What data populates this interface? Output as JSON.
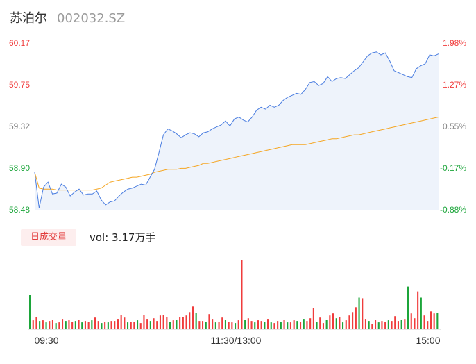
{
  "stock": {
    "name": "苏泊尔",
    "code": "002032.SZ"
  },
  "volume_panel": {
    "badge_label": "日成交量",
    "vol_text": "vol: 3.17万手"
  },
  "colors": {
    "price": "#4a7de0",
    "avg": "#f5a623",
    "up": "#f03c3c",
    "down": "#1ca53a",
    "area": "#eef3fb"
  },
  "chart_data": [
    {
      "type": "line",
      "title": "",
      "x_ticks": [
        "09:30",
        "11:30/13:00",
        "15:00"
      ],
      "y_left_ticks": [
        "60.17",
        "59.75",
        "59.32",
        "58.90",
        "58.48"
      ],
      "y_right_ticks": [
        "1.98%",
        "1.27%",
        "0.55%",
        "-0.17%",
        "-0.88%"
      ],
      "ylim": [
        58.48,
        60.17
      ],
      "prev_close": 59.0,
      "series": [
        {
          "values": [
            58.86,
            58.5,
            58.71,
            58.76,
            58.64,
            58.65,
            58.74,
            58.71,
            58.62,
            58.66,
            58.69,
            58.63,
            58.64,
            58.64,
            58.67,
            58.58,
            58.53,
            58.56,
            58.57,
            58.62,
            58.66,
            58.69,
            58.7,
            58.72,
            58.74,
            58.73,
            58.81,
            58.89,
            59.06,
            59.24,
            59.3,
            59.28,
            59.25,
            59.21,
            59.24,
            59.26,
            59.25,
            59.22,
            59.26,
            59.27,
            59.3,
            59.32,
            59.34,
            59.38,
            59.33,
            59.4,
            59.42,
            59.39,
            59.37,
            59.42,
            59.49,
            59.52,
            59.5,
            59.54,
            59.52,
            59.54,
            59.59,
            59.62,
            59.64,
            59.66,
            59.65,
            59.7,
            59.77,
            59.78,
            59.74,
            59.76,
            59.83,
            59.78,
            59.81,
            59.82,
            59.81,
            59.85,
            59.89,
            59.92,
            59.98,
            60.04,
            60.07,
            60.08,
            60.05,
            60.07,
            59.99,
            59.89,
            59.87,
            59.85,
            59.83,
            59.82,
            59.91,
            59.94,
            59.96,
            60.05,
            60.04,
            60.06
          ]
        },
        {
          "values": [
            58.86,
            58.7,
            58.69,
            58.69,
            58.69,
            58.68,
            58.68,
            58.68,
            58.68,
            58.68,
            58.68,
            58.68,
            58.68,
            58.68,
            58.69,
            58.7,
            58.73,
            58.76,
            58.77,
            58.78,
            58.79,
            58.8,
            58.81,
            58.81,
            58.82,
            58.83,
            58.84,
            58.86,
            58.87,
            58.88,
            58.89,
            58.89,
            58.89,
            58.9,
            58.9,
            58.91,
            58.92,
            58.93,
            58.95,
            58.95,
            58.96,
            58.97,
            58.98,
            58.99,
            59.0,
            59.01,
            59.02,
            59.03,
            59.04,
            59.05,
            59.06,
            59.07,
            59.08,
            59.09,
            59.1,
            59.11,
            59.12,
            59.13,
            59.14,
            59.14,
            59.14,
            59.14,
            59.15,
            59.16,
            59.17,
            59.18,
            59.19,
            59.2,
            59.2,
            59.21,
            59.22,
            59.23,
            59.24,
            59.24,
            59.25,
            59.26,
            59.27,
            59.28,
            59.29,
            59.3,
            59.31,
            59.32,
            59.33,
            59.34,
            59.35,
            59.36,
            59.37,
            59.38,
            59.39,
            59.4,
            59.41,
            59.42
          ]
        }
      ]
    },
    {
      "type": "bar",
      "title": "",
      "ylim": [
        0,
        100
      ],
      "series": [
        {
          "name": "volume",
          "values": [
            50,
            13,
            18,
            12,
            13,
            10,
            12,
            14,
            9,
            10,
            15,
            12,
            13,
            11,
            12,
            14,
            10,
            12,
            11,
            13,
            17,
            12,
            9,
            11,
            10,
            12,
            12,
            15,
            21,
            17,
            10,
            11,
            11,
            13,
            9,
            21,
            15,
            12,
            16,
            12,
            20,
            21,
            18,
            11,
            13,
            14,
            18,
            18,
            20,
            25,
            33,
            24,
            12,
            12,
            11,
            22,
            15,
            10,
            11,
            17,
            14,
            11,
            10,
            9,
            13,
            100,
            14,
            16,
            12,
            10,
            13,
            12,
            11,
            15,
            10,
            9,
            12,
            11,
            14,
            10,
            10,
            13,
            12,
            11,
            15,
            12,
            16,
            31,
            11,
            17,
            9,
            14,
            20,
            23,
            16,
            18,
            10,
            13,
            20,
            25,
            32,
            46,
            45,
            15,
            12,
            8,
            14,
            10,
            12,
            11,
            13,
            12,
            19,
            12,
            14,
            15,
            62,
            23,
            16,
            55,
            46,
            20,
            12,
            26,
            23,
            24
          ],
          "up": [
            0,
            1,
            1,
            0,
            1,
            0,
            1,
            1,
            0,
            1,
            1,
            0,
            1,
            1,
            0,
            1,
            0,
            1,
            1,
            0,
            1,
            1,
            0,
            1,
            0,
            1,
            1,
            1,
            1,
            1,
            0,
            1,
            1,
            0,
            1,
            1,
            1,
            0,
            1,
            1,
            1,
            1,
            1,
            0,
            1,
            0,
            1,
            1,
            1,
            1,
            1,
            0,
            1,
            1,
            0,
            1,
            1,
            0,
            1,
            1,
            0,
            1,
            1,
            0,
            1,
            1,
            0,
            1,
            1,
            0,
            1,
            1,
            0,
            1,
            0,
            1,
            1,
            0,
            1,
            0,
            1,
            1,
            0,
            1,
            0,
            1,
            1,
            1,
            0,
            1,
            1,
            0,
            1,
            1,
            0,
            1,
            0,
            1,
            1,
            1,
            1,
            0,
            1,
            1,
            0,
            1,
            1,
            0,
            1,
            1,
            0,
            1,
            1,
            1,
            0,
            1,
            0,
            1,
            1,
            1,
            0,
            1,
            1,
            1,
            1,
            0
          ]
        }
      ]
    }
  ]
}
